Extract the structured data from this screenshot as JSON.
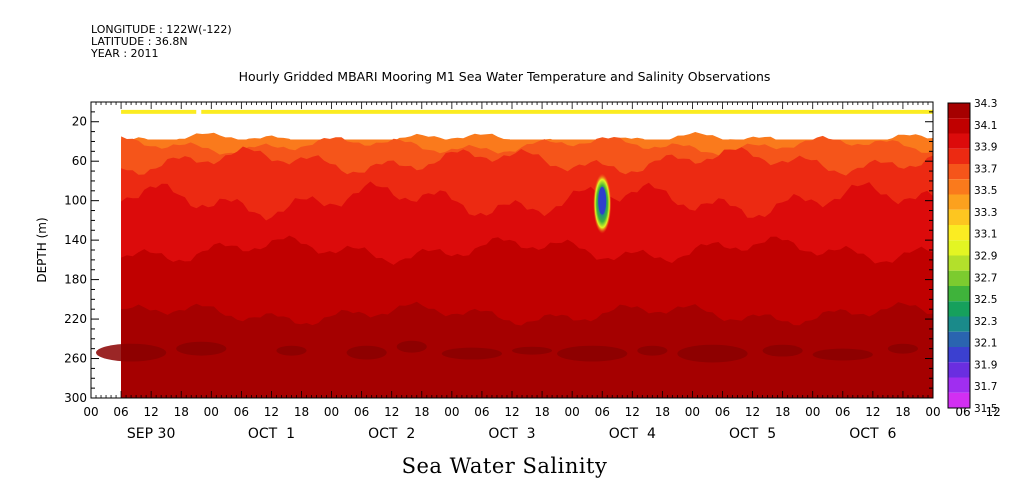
{
  "header": {
    "longitude": "LONGITUDE : 122W(-122)",
    "latitude": "LATITUDE : 36.8N",
    "year": "YEAR : 2011"
  },
  "chart_data": {
    "type": "heatmap",
    "title": "Hourly Gridded MBARI Mooring M1 Sea Water Temperature and Salinity Observations",
    "xlabel": "Sea Water Salinity",
    "ylabel": "DEPTH (m)",
    "ylim": [
      300,
      0
    ],
    "y_ticks": [
      20,
      60,
      100,
      140,
      180,
      220,
      260,
      300
    ],
    "x_hour_ticks": [
      "00",
      "06",
      "12",
      "18",
      "00",
      "06",
      "12",
      "18",
      "00",
      "06",
      "12",
      "18",
      "00",
      "06",
      "12",
      "18",
      "00",
      "06",
      "12",
      "18",
      "00",
      "06",
      "12",
      "18",
      "00",
      "06",
      "12",
      "18",
      "00",
      "06",
      "12",
      "18"
    ],
    "x_day_labels": [
      "SEP 30",
      "OCT  1",
      "OCT  2",
      "OCT  3",
      "OCT  4",
      "OCT  5",
      "OCT  6"
    ],
    "data_start": "SEP 30 06",
    "colorbar": {
      "levels": [
        "34.3",
        "34.1",
        "33.9",
        "33.7",
        "33.5",
        "33.3",
        "33.1",
        "32.9",
        "32.7",
        "32.5",
        "32.3",
        "32.1",
        "31.9",
        "31.7",
        "31.5"
      ],
      "colors": [
        "#a50000",
        "#c00000",
        "#dc0b0b",
        "#ec2a12",
        "#f5551a",
        "#fa7a1c",
        "#fca11e",
        "#fdc620",
        "#fbec22",
        "#e3f523",
        "#b3e02b",
        "#7ccb2f",
        "#3fb33b",
        "#16a05c",
        "#1a8a8a",
        "#2a64b0",
        "#3b40d0",
        "#6a2ee0",
        "#a02ef0",
        "#d22ff2"
      ]
    },
    "depth_bands": [
      {
        "depth_top": 8,
        "depth_bottom": 12,
        "salinity": "33.3"
      },
      {
        "depth_top": 12,
        "depth_bottom": 38,
        "salinity": "no data"
      },
      {
        "depth_top": 38,
        "depth_bottom": 60,
        "salinity": "33.5-33.7"
      },
      {
        "depth_top": 60,
        "depth_bottom": 100,
        "salinity": "33.7-33.9"
      },
      {
        "depth_top": 100,
        "depth_bottom": 150,
        "salinity": "33.9-34.1"
      },
      {
        "depth_top": 150,
        "depth_bottom": 215,
        "salinity": "34.1"
      },
      {
        "depth_top": 215,
        "depth_bottom": 300,
        "salinity": "34.1-34.3"
      }
    ],
    "anomaly": {
      "time": "OCT 3 ~20",
      "depth": 100,
      "salinity_min": "31.9"
    }
  }
}
